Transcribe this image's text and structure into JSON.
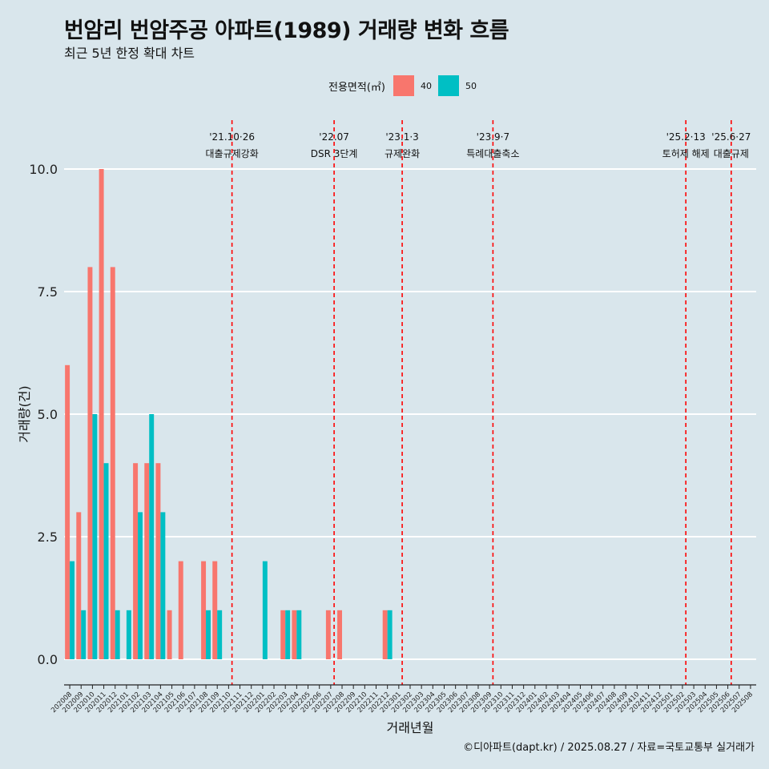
{
  "title": "번암리 번암주공 아파트(1989) 거래량 변화 흐름",
  "subtitle": "최근 5년 한정 확대 차트",
  "caption": "©디아파트(dapt.kr) / 2025.08.27 / 자료=국토교통부 실거래가",
  "legend": {
    "title": "전용면적(㎡)",
    "items": [
      {
        "name": "40",
        "color": "#f8766d"
      },
      {
        "name": "50",
        "color": "#00bfc4"
      }
    ]
  },
  "chart_data": {
    "type": "bar",
    "xlabel": "거래년월",
    "ylabel": "거래량(건)",
    "ylim": [
      0,
      10
    ],
    "yticks": [
      "0.0",
      "2.5",
      "5.0",
      "7.5",
      "10.0"
    ],
    "ytick_values": [
      0,
      2.5,
      5,
      7.5,
      10
    ],
    "grid": true,
    "legend_position": "top",
    "categories": [
      "202008",
      "202009",
      "202010",
      "202011",
      "202012",
      "202101",
      "202102",
      "202103",
      "202104",
      "202105",
      "202106",
      "202107",
      "202108",
      "202109",
      "202110",
      "202111",
      "202112",
      "202201",
      "202202",
      "202203",
      "202204",
      "202205",
      "202206",
      "202207",
      "202208",
      "202209",
      "202210",
      "202211",
      "202212",
      "202301",
      "202302",
      "202303",
      "202304",
      "202305",
      "202306",
      "202307",
      "202308",
      "202309",
      "202310",
      "202311",
      "202312",
      "202401",
      "202402",
      "202403",
      "202404",
      "202405",
      "202406",
      "202407",
      "202408",
      "202409",
      "202410",
      "202411",
      "202412",
      "202501",
      "202502",
      "202503",
      "202504",
      "202505",
      "202506",
      "202507",
      "202508"
    ],
    "series": [
      {
        "name": "40",
        "color": "#f8766d",
        "values": [
          6,
          3,
          8,
          10,
          8,
          0,
          4,
          4,
          4,
          1,
          2,
          0,
          2,
          2,
          0,
          0,
          0,
          0,
          0,
          1,
          1,
          0,
          0,
          1,
          1,
          0,
          0,
          0,
          1,
          0,
          0,
          0,
          0,
          0,
          0,
          0,
          0,
          0,
          0,
          0,
          0,
          0,
          0,
          0,
          0,
          0,
          0,
          0,
          0,
          0,
          0,
          0,
          0,
          0,
          0,
          0,
          0,
          0,
          0,
          0,
          0
        ]
      },
      {
        "name": "50",
        "color": "#00bfc4",
        "values": [
          2,
          1,
          5,
          4,
          1,
          1,
          3,
          5,
          3,
          0,
          0,
          0,
          1,
          1,
          0,
          0,
          0,
          2,
          0,
          1,
          1,
          0,
          0,
          0,
          0,
          0,
          0,
          0,
          1,
          0,
          0,
          0,
          0,
          0,
          0,
          0,
          0,
          0,
          0,
          0,
          0,
          0,
          0,
          0,
          0,
          0,
          0,
          0,
          0,
          0,
          0,
          0,
          0,
          0,
          0,
          0,
          0,
          0,
          0,
          0,
          0
        ]
      }
    ],
    "events": [
      {
        "date": "'21.10·26",
        "label": "대출규제강화",
        "month_index": 14.8
      },
      {
        "date": "'22.07",
        "label": "DSR 3단계",
        "month_index": 23.8
      },
      {
        "date": "'23.1·3",
        "label": "규제완화",
        "month_index": 29.8
      },
      {
        "date": "'23.9·7",
        "label": "특례대출축소",
        "month_index": 37.8
      },
      {
        "date": "'25.2·13",
        "label": "토허제 해제",
        "month_index": 54.8
      },
      {
        "date": "'25.6·27",
        "label": "대출규제",
        "month_index": 58.8
      }
    ]
  }
}
